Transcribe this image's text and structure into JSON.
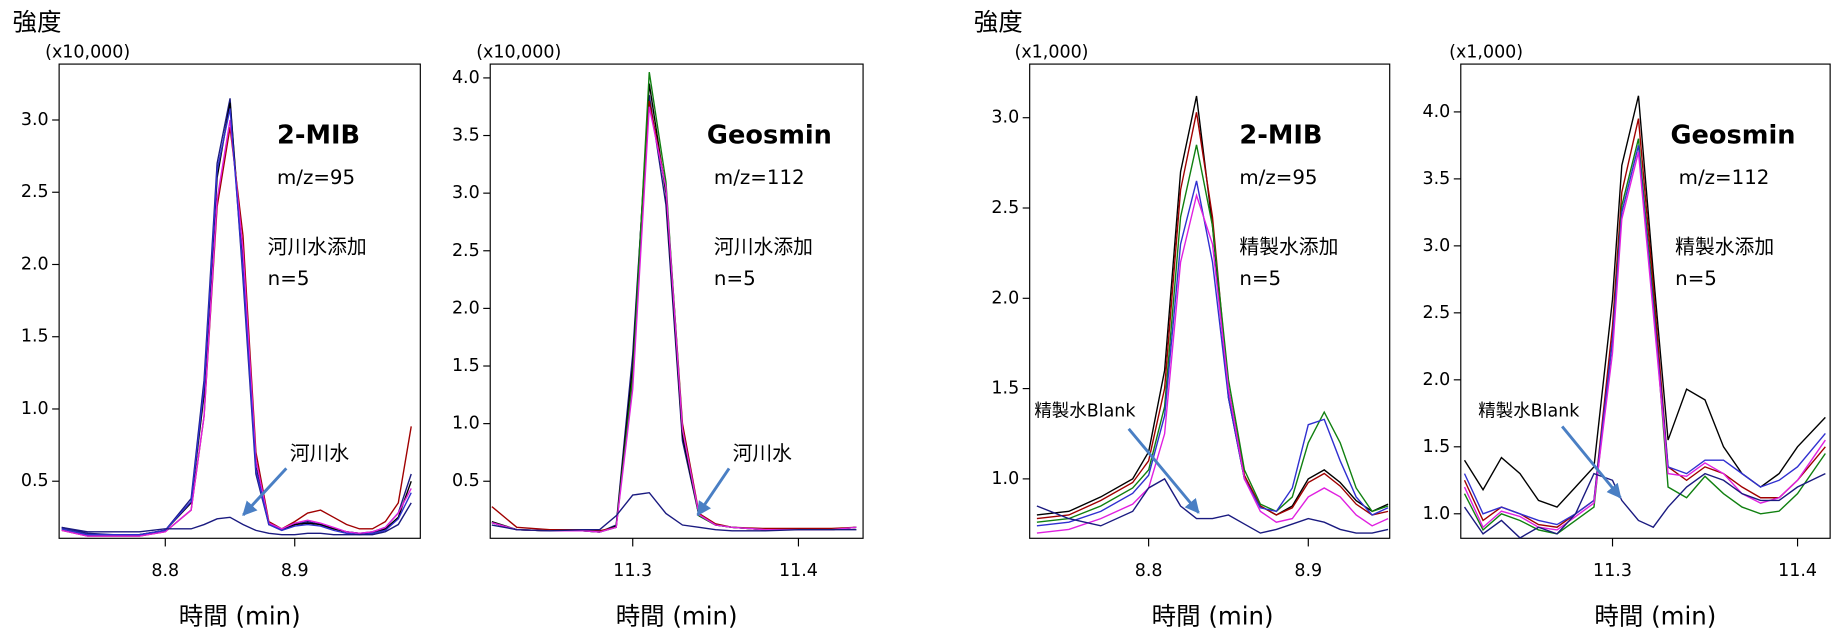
{
  "chart_data": [
    {
      "type": "line",
      "y_label": "強度",
      "y_unit": "(x10,000)",
      "title": "2-MIB",
      "subtitle": "m/z=95",
      "annotations": [
        "河川水添加",
        "n=5",
        "河川水"
      ],
      "x_label": "時間 (min)",
      "xlim": [
        8.718,
        8.997
      ],
      "ylim": [
        0.105,
        3.387
      ],
      "xticks": [
        8.8,
        8.9
      ],
      "yticks": [
        0.5,
        {
          "value": 1,
          "label": "1.0"
        },
        1.5,
        {
          "value": 2,
          "label": "2.0"
        },
        2.5,
        {
          "value": 3,
          "label": "3.0"
        }
      ],
      "x": [
        8.72,
        8.74,
        8.76,
        8.78,
        8.8,
        8.82,
        8.83,
        8.84,
        8.85,
        8.86,
        8.87,
        8.88,
        8.89,
        8.9,
        8.91,
        8.92,
        8.93,
        8.94,
        8.95,
        8.96,
        8.97,
        8.98,
        8.99
      ],
      "series": [
        {
          "color": "#1a1a80",
          "values": [
            0.18,
            0.14,
            0.13,
            0.13,
            0.16,
            0.38,
            1.2,
            2.7,
            3.15,
            1.9,
            0.55,
            0.2,
            0.16,
            0.2,
            0.22,
            0.2,
            0.17,
            0.15,
            0.14,
            0.15,
            0.18,
            0.28,
            0.55
          ]
        },
        {
          "color": "#000000",
          "values": [
            0.17,
            0.13,
            0.13,
            0.13,
            0.16,
            0.35,
            1.1,
            2.6,
            3.12,
            2.0,
            0.6,
            0.2,
            0.17,
            0.2,
            0.21,
            0.2,
            0.17,
            0.15,
            0.14,
            0.14,
            0.17,
            0.25,
            0.5
          ]
        },
        {
          "color": "#a00000",
          "values": [
            0.16,
            0.12,
            0.12,
            0.12,
            0.15,
            0.3,
            0.95,
            2.4,
            2.95,
            2.2,
            0.7,
            0.22,
            0.17,
            0.22,
            0.28,
            0.3,
            0.25,
            0.2,
            0.17,
            0.17,
            0.22,
            0.35,
            0.88
          ]
        },
        {
          "color": "#e020e0",
          "values": [
            0.16,
            0.12,
            0.12,
            0.12,
            0.15,
            0.3,
            0.95,
            2.45,
            3.0,
            2.1,
            0.65,
            0.21,
            0.17,
            0.21,
            0.23,
            0.21,
            0.18,
            0.15,
            0.14,
            0.15,
            0.18,
            0.28,
            0.45
          ]
        },
        {
          "color": "#3030d0",
          "values": [
            0.17,
            0.13,
            0.13,
            0.13,
            0.16,
            0.36,
            1.15,
            2.65,
            3.08,
            1.95,
            0.58,
            0.2,
            0.16,
            0.19,
            0.2,
            0.19,
            0.16,
            0.14,
            0.13,
            0.14,
            0.16,
            0.24,
            0.42
          ]
        },
        {
          "color": "#1a1a80",
          "values": [
            0.18,
            0.15,
            0.15,
            0.15,
            0.17,
            0.17,
            0.2,
            0.24,
            0.25,
            0.2,
            0.16,
            0.14,
            0.13,
            0.13,
            0.14,
            0.14,
            0.13,
            0.13,
            0.13,
            0.13,
            0.15,
            0.2,
            0.35
          ]
        }
      ]
    },
    {
      "type": "line",
      "y_unit": "(x10,000)",
      "title": "Geosmin",
      "subtitle": "m/z=112",
      "annotations": [
        "河川水添加",
        "n=5",
        "河川水"
      ],
      "x_label": "時間 (min)",
      "xlim": [
        11.214,
        11.439
      ],
      "ylim": [
        0.005,
        4.12
      ],
      "xticks": [
        11.3,
        11.4
      ],
      "yticks": [
        0.5,
        {
          "value": 1,
          "label": "1.0"
        },
        1.5,
        {
          "value": 2,
          "label": "2.0"
        },
        2.5,
        {
          "value": 3,
          "label": "3.0"
        },
        3.5,
        {
          "value": 4,
          "label": "4.0"
        }
      ],
      "x": [
        11.215,
        11.23,
        11.25,
        11.27,
        11.28,
        11.29,
        11.3,
        11.31,
        11.32,
        11.33,
        11.34,
        11.35,
        11.36,
        11.38,
        11.4,
        11.42,
        11.435
      ],
      "series": [
        {
          "color": "#1a1a80",
          "values": [
            0.14,
            0.08,
            0.07,
            0.07,
            0.06,
            0.12,
            1.6,
            3.85,
            2.9,
            0.85,
            0.2,
            0.12,
            0.1,
            0.08,
            0.08,
            0.08,
            0.1
          ]
        },
        {
          "color": "#000000",
          "values": [
            0.15,
            0.08,
            0.07,
            0.07,
            0.06,
            0.11,
            1.5,
            3.95,
            3.0,
            0.9,
            0.2,
            0.12,
            0.1,
            0.08,
            0.08,
            0.08,
            0.1
          ]
        },
        {
          "color": "#a00000",
          "values": [
            0.28,
            0.1,
            0.08,
            0.08,
            0.07,
            0.1,
            1.4,
            3.8,
            3.05,
            1.0,
            0.22,
            0.13,
            0.1,
            0.09,
            0.09,
            0.09,
            0.1
          ]
        },
        {
          "color": "#108010",
          "values": [
            0.14,
            0.08,
            0.07,
            0.07,
            0.06,
            0.1,
            1.4,
            4.05,
            3.1,
            0.95,
            0.2,
            0.12,
            0.1,
            0.08,
            0.08,
            0.08,
            0.1
          ]
        },
        {
          "color": "#e020e0",
          "values": [
            0.14,
            0.08,
            0.07,
            0.07,
            0.06,
            0.1,
            1.3,
            3.75,
            3.05,
            0.95,
            0.21,
            0.12,
            0.1,
            0.08,
            0.08,
            0.08,
            0.1
          ]
        },
        {
          "color": "#1a1a80",
          "values": [
            0.12,
            0.08,
            0.07,
            0.08,
            0.08,
            0.2,
            0.38,
            0.4,
            0.22,
            0.12,
            0.1,
            0.08,
            0.07,
            0.07,
            0.08,
            0.08,
            0.08
          ]
        }
      ]
    },
    {
      "type": "line",
      "y_label": "強度",
      "y_unit": "(x1,000)",
      "title": "2-MIB",
      "subtitle": "m/z=95",
      "annotations": [
        "精製水添加",
        "n=5",
        "精製水Blank"
      ],
      "x_label": "時間 (min)",
      "xlim": [
        8.7255,
        8.951
      ],
      "ylim": [
        0.671,
        3.297
      ],
      "xticks": [
        8.8,
        8.9
      ],
      "yticks": [
        {
          "value": 1,
          "label": "1.0"
        },
        1.5,
        {
          "value": 2,
          "label": "2.0"
        },
        2.5,
        {
          "value": 3,
          "label": "3.0"
        }
      ],
      "x": [
        8.73,
        8.75,
        8.77,
        8.79,
        8.8,
        8.81,
        8.82,
        8.83,
        8.84,
        8.85,
        8.86,
        8.87,
        8.88,
        8.89,
        8.9,
        8.91,
        8.92,
        8.93,
        8.94,
        8.95
      ],
      "series": [
        {
          "color": "#000000",
          "values": [
            0.8,
            0.82,
            0.9,
            1.0,
            1.15,
            1.6,
            2.7,
            3.12,
            2.4,
            1.45,
            1.0,
            0.85,
            0.8,
            0.85,
            1.0,
            1.05,
            0.98,
            0.88,
            0.82,
            0.86
          ]
        },
        {
          "color": "#a00000",
          "values": [
            0.78,
            0.8,
            0.88,
            0.98,
            1.1,
            1.5,
            2.6,
            3.03,
            2.45,
            1.5,
            1.02,
            0.85,
            0.8,
            0.84,
            0.98,
            1.03,
            0.96,
            0.86,
            0.8,
            0.82
          ]
        },
        {
          "color": "#108010",
          "values": [
            0.76,
            0.78,
            0.85,
            0.95,
            1.05,
            1.4,
            2.45,
            2.85,
            2.4,
            1.55,
            1.05,
            0.86,
            0.82,
            0.9,
            1.2,
            1.37,
            1.2,
            0.95,
            0.82,
            0.85
          ]
        },
        {
          "color": "#3030d0",
          "values": [
            0.74,
            0.76,
            0.82,
            0.92,
            1.02,
            1.35,
            2.3,
            2.65,
            2.2,
            1.45,
            1.0,
            0.84,
            0.82,
            0.95,
            1.3,
            1.33,
            1.1,
            0.9,
            0.8,
            0.84
          ]
        },
        {
          "color": "#e020e0",
          "values": [
            0.7,
            0.72,
            0.78,
            0.86,
            0.95,
            1.25,
            2.2,
            2.57,
            2.3,
            1.5,
            1.0,
            0.82,
            0.76,
            0.78,
            0.9,
            0.95,
            0.9,
            0.8,
            0.74,
            0.78
          ]
        },
        {
          "color": "#1a1a80",
          "values": [
            0.85,
            0.78,
            0.74,
            0.82,
            0.95,
            1.0,
            0.85,
            0.78,
            0.78,
            0.8,
            0.75,
            0.7,
            0.72,
            0.75,
            0.78,
            0.76,
            0.72,
            0.7,
            0.7,
            0.72
          ]
        }
      ]
    },
    {
      "type": "line",
      "y_unit": "(x1,000)",
      "title": "Geosmin",
      "subtitle": "m/z=112",
      "annotations": [
        "精製水添加",
        "n=5",
        "精製水Blank"
      ],
      "x_label": "時間 (min)",
      "xlim": [
        11.218,
        11.4176
      ],
      "ylim": [
        0.817,
        4.357
      ],
      "xticks": [
        11.3,
        11.4
      ],
      "yticks": [
        {
          "value": 1,
          "label": "1.0"
        },
        1.5,
        {
          "value": 2,
          "label": "2.0"
        },
        2.5,
        {
          "value": 3,
          "label": "3.0"
        },
        3.5,
        {
          "value": 4,
          "label": "4.0"
        }
      ],
      "x": [
        11.22,
        11.23,
        11.24,
        11.25,
        11.26,
        11.27,
        11.28,
        11.29,
        11.3,
        11.305,
        11.314,
        11.322,
        11.33,
        11.34,
        11.35,
        11.36,
        11.37,
        11.38,
        11.39,
        11.4,
        11.415
      ],
      "series": [
        {
          "color": "#000000",
          "values": [
            1.4,
            1.18,
            1.42,
            1.3,
            1.1,
            1.05,
            1.2,
            1.35,
            2.6,
            3.6,
            4.12,
            2.8,
            1.55,
            1.93,
            1.85,
            1.5,
            1.3,
            1.2,
            1.3,
            1.5,
            1.72
          ]
        },
        {
          "color": "#a00000",
          "values": [
            1.25,
            0.95,
            1.05,
            1.0,
            0.92,
            0.9,
            1.0,
            1.1,
            2.4,
            3.4,
            3.95,
            2.7,
            1.35,
            1.25,
            1.35,
            1.3,
            1.2,
            1.12,
            1.12,
            1.25,
            1.5
          ]
        },
        {
          "color": "#108010",
          "values": [
            1.15,
            0.88,
            1.0,
            0.95,
            0.88,
            0.85,
            0.95,
            1.05,
            2.3,
            3.3,
            3.8,
            2.6,
            1.2,
            1.12,
            1.28,
            1.15,
            1.05,
            1.0,
            1.02,
            1.15,
            1.45
          ]
        },
        {
          "color": "#3030d0",
          "values": [
            1.3,
            1.0,
            1.05,
            1.0,
            0.95,
            0.92,
            1.0,
            1.1,
            2.3,
            3.25,
            3.75,
            2.55,
            1.35,
            1.3,
            1.4,
            1.4,
            1.3,
            1.2,
            1.25,
            1.35,
            1.6
          ]
        },
        {
          "color": "#e020e0",
          "values": [
            1.2,
            0.9,
            1.02,
            0.98,
            0.9,
            0.88,
            0.98,
            1.08,
            2.2,
            3.2,
            3.7,
            2.5,
            1.3,
            1.28,
            1.38,
            1.3,
            1.15,
            1.08,
            1.12,
            1.25,
            1.55
          ]
        },
        {
          "color": "#1a1a80",
          "values": [
            1.05,
            0.85,
            0.95,
            0.82,
            0.9,
            0.85,
            1.0,
            1.3,
            1.25,
            1.1,
            0.95,
            0.9,
            1.05,
            1.2,
            1.3,
            1.25,
            1.15,
            1.1,
            1.1,
            1.2,
            1.3
          ]
        }
      ]
    }
  ]
}
